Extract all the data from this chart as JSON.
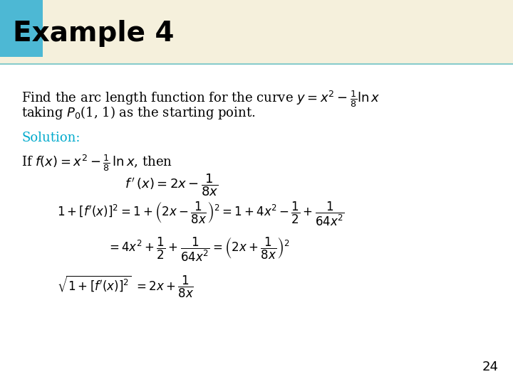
{
  "title": "Example 4",
  "title_color": "#000000",
  "title_bg_color": "#4db8d4",
  "header_bg_color": "#f5f0dc",
  "slide_bg_color": "#ffffff",
  "solution_color": "#00aacc",
  "page_number": "24",
  "body_text_color": "#000000",
  "formula_color": "#000000"
}
